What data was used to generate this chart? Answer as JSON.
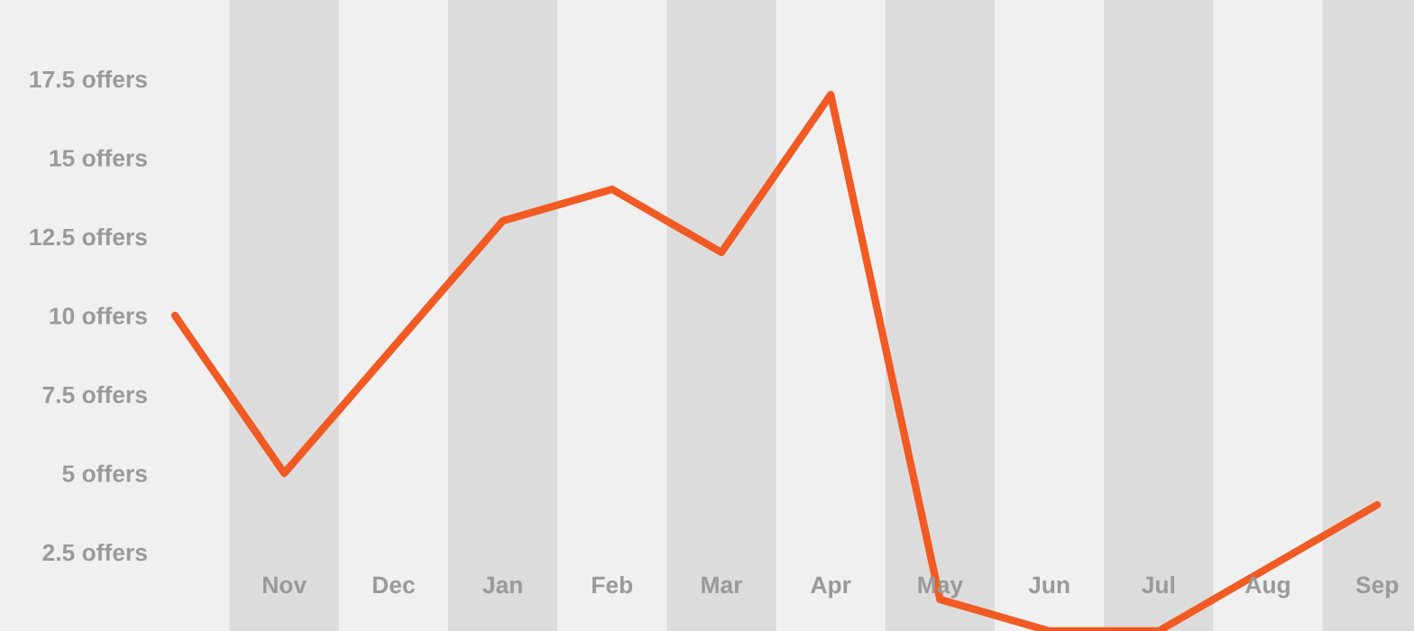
{
  "chart_data": {
    "type": "line",
    "categories": [
      null,
      "Nov",
      "Dec",
      "Jan",
      "Feb",
      "Mar",
      "Apr",
      "May",
      "Jun",
      "Jul",
      "Aug",
      "Sep"
    ],
    "series": [
      {
        "color": "#f15a22",
        "values": [
          10,
          5,
          9,
          13,
          14,
          12,
          17,
          1,
          0,
          0,
          2,
          4
        ]
      }
    ],
    "ylim": [
      0,
      20
    ],
    "yticks": [
      {
        "value": 2.5,
        "label": "2.5 offers"
      },
      {
        "value": 5,
        "label": "5 offers"
      },
      {
        "value": 7.5,
        "label": "7.5 offers"
      },
      {
        "value": 10,
        "label": "10 offers"
      },
      {
        "value": 12.5,
        "label": "12.5 offers"
      },
      {
        "value": 15,
        "label": "15 offers"
      },
      {
        "value": 17.5,
        "label": "17.5 offers"
      }
    ],
    "bands": [
      {
        "axis": "x",
        "from": "Nov",
        "to": "Nov",
        "color": "#dcdcdc"
      },
      {
        "axis": "x",
        "from": "Jan",
        "to": "Jan",
        "color": "#dcdcdc"
      },
      {
        "axis": "x",
        "from": "Mar",
        "to": "Mar",
        "color": "#dcdcdc"
      },
      {
        "axis": "x",
        "from": "May",
        "to": "May",
        "color": "#dcdcdc"
      },
      {
        "axis": "x",
        "from": "Jul",
        "to": "Jul",
        "color": "#dcdcdc"
      },
      {
        "axis": "x",
        "from": "Sep",
        "to": "Sep",
        "color": "#dcdcdc"
      }
    ],
    "grid": false,
    "legend": false,
    "marker": "none",
    "line_style": "solid"
  }
}
